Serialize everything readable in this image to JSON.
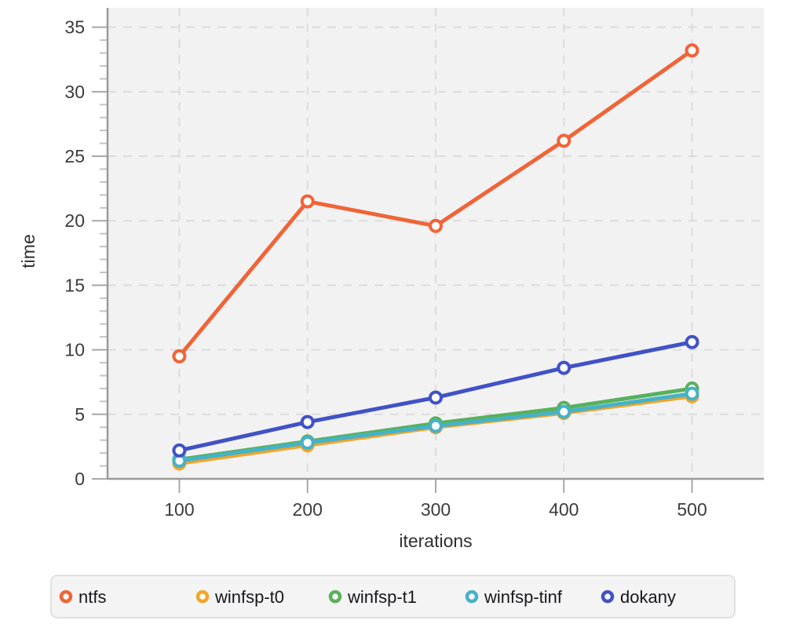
{
  "chart_data": {
    "type": "line",
    "title": "",
    "xlabel": "iterations",
    "ylabel": "time",
    "x": [
      100,
      200,
      300,
      400,
      500
    ],
    "x_ticks": [
      100,
      200,
      300,
      400,
      500
    ],
    "y_major_ticks": [
      0,
      5,
      10,
      15,
      20,
      25,
      30,
      35
    ],
    "y_minor_tick_step": 1,
    "xlim": [
      44,
      556
    ],
    "ylim": [
      0,
      36.5
    ],
    "grid": "dashed",
    "legend_position": "bottom",
    "marker": "open-circle",
    "series": [
      {
        "name": "ntfs",
        "color": "#f06437",
        "values": [
          9.5,
          21.5,
          19.6,
          26.2,
          33.2
        ]
      },
      {
        "name": "winfsp-t0",
        "color": "#f4a428",
        "values": [
          1.2,
          2.6,
          4.0,
          5.1,
          6.4
        ]
      },
      {
        "name": "winfsp-t1",
        "color": "#58b15c",
        "values": [
          1.5,
          2.9,
          4.3,
          5.5,
          7.0
        ]
      },
      {
        "name": "winfsp-tinf",
        "color": "#45b2c8",
        "values": [
          1.4,
          2.8,
          4.1,
          5.2,
          6.6
        ]
      },
      {
        "name": "dokany",
        "color": "#4152c6",
        "values": [
          2.2,
          4.4,
          6.3,
          8.6,
          10.6
        ]
      }
    ],
    "colors": {
      "plot_background": "#f2f2f3",
      "gridline": "#dcdcdc",
      "axis_line": "#9b9b9b",
      "major_tick": "#a8a8a8",
      "minor_tick": "#c4c4c4",
      "tick_label": "#3c3c3c",
      "axis_label": "#2f2f2f",
      "legend_text": "#17171a",
      "legend_fill": "#f4f4f5",
      "legend_border": "#d8d8d8"
    }
  }
}
